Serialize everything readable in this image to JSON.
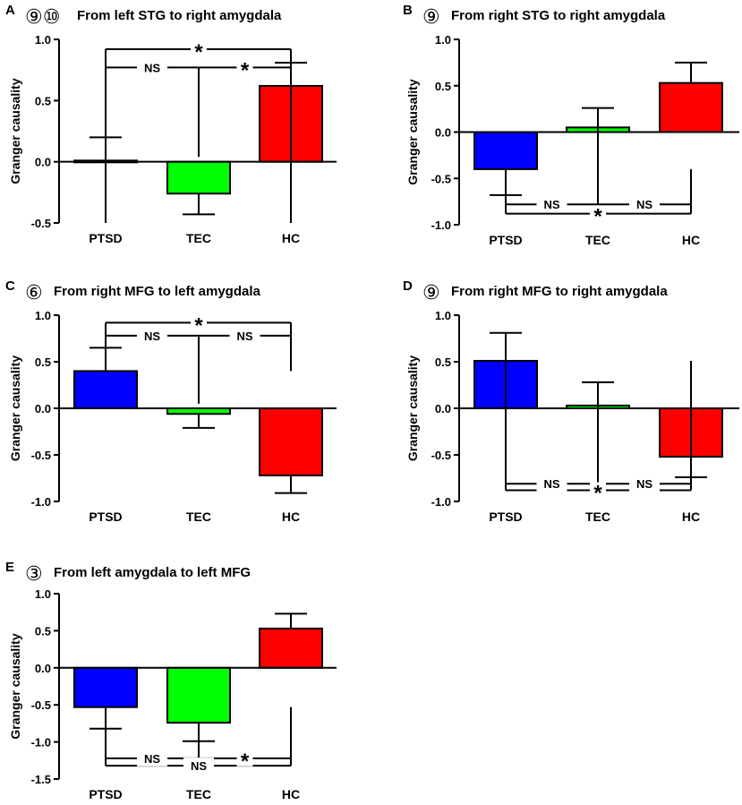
{
  "figure": {
    "description_free": true
  },
  "chart_data": [
    {
      "type": "bar",
      "panel": "A",
      "circled_markers": [
        "⑨",
        "⑩"
      ],
      "title": "From left STG to right amygdala",
      "ylabel": "Granger causality",
      "categories": [
        "PTSD",
        "TEC",
        "HC"
      ],
      "values": [
        0.01,
        -0.26,
        0.62
      ],
      "errors": [
        0.19,
        0.17,
        0.19
      ],
      "colors": [
        "#0000ff",
        "#00ff00",
        "#ff0000"
      ],
      "ylim": [
        -0.5,
        1.0
      ],
      "yticks": [
        -0.5,
        0.0,
        0.5,
        1.0
      ],
      "ytick_labels": [
        "-0.5",
        "0.0",
        "0.5",
        "1.0"
      ],
      "brackets": [
        {
          "from": 0,
          "to": 2,
          "label": "*",
          "level": 0.92,
          "drop": -0.5
        },
        {
          "from": 1,
          "to": 2,
          "label": "*",
          "level": 0.77,
          "drop": 0.04,
          "left_label": "NS"
        }
      ]
    },
    {
      "type": "bar",
      "panel": "B",
      "circled_markers": [
        "⑨"
      ],
      "title": "From right STG to right amygdala",
      "ylabel": "Granger causality",
      "categories": [
        "PTSD",
        "TEC",
        "HC"
      ],
      "values": [
        -0.4,
        0.05,
        0.53
      ],
      "errors": [
        0.28,
        0.21,
        0.22
      ],
      "colors": [
        "#0000ff",
        "#00ff00",
        "#ff0000"
      ],
      "ylim": [
        -1.0,
        1.0
      ],
      "yticks": [
        -1.0,
        -0.5,
        0.0,
        0.5,
        1.0
      ],
      "ytick_labels": [
        "-1.0",
        "-0.5",
        "0.0",
        "0.5",
        "1.0"
      ],
      "brackets": [
        {
          "from": 0,
          "to": 2,
          "label": "*",
          "level": -0.88,
          "drop": -0.4
        },
        {
          "from": 1,
          "to": 2,
          "label": "NS",
          "level": -0.78,
          "drop": 0.05,
          "left_label": "NS"
        }
      ]
    },
    {
      "type": "bar",
      "panel": "C",
      "circled_markers": [
        "⑥"
      ],
      "title": "From right MFG to left amygdala",
      "ylabel": "Granger causality",
      "categories": [
        "PTSD",
        "TEC",
        "HC"
      ],
      "values": [
        0.4,
        -0.06,
        -0.72
      ],
      "errors": [
        0.25,
        0.15,
        0.19
      ],
      "colors": [
        "#0000ff",
        "#00ff00",
        "#ff0000"
      ],
      "ylim": [
        -1.0,
        1.0
      ],
      "yticks": [
        -1.0,
        -0.5,
        0.0,
        0.5,
        1.0
      ],
      "ytick_labels": [
        "-1.0",
        "-0.5",
        "0.0",
        "0.5",
        "1.0"
      ],
      "brackets": [
        {
          "from": 0,
          "to": 2,
          "label": "*",
          "level": 0.92,
          "drop": 0.4
        },
        {
          "from": 1,
          "to": 2,
          "label": "NS",
          "level": 0.78,
          "drop": 0.05,
          "left_label": "NS"
        }
      ]
    },
    {
      "type": "bar",
      "panel": "D",
      "circled_markers": [
        "⑨"
      ],
      "title": "From right MFG to right amygdala",
      "ylabel": "Granger causality",
      "categories": [
        "PTSD",
        "TEC",
        "HC"
      ],
      "values": [
        0.51,
        0.03,
        -0.52
      ],
      "errors": [
        0.3,
        0.25,
        0.22
      ],
      "colors": [
        "#0000ff",
        "#00ff00",
        "#ff0000"
      ],
      "ylim": [
        -1.0,
        1.0
      ],
      "yticks": [
        -1.0,
        -0.5,
        0.0,
        0.5,
        1.0
      ],
      "ytick_labels": [
        "-1.0",
        "-0.5",
        "0.0",
        "0.5",
        "1.0"
      ],
      "brackets": [
        {
          "from": 0,
          "to": 2,
          "label": "*",
          "level": -0.88,
          "drop": 0.51
        },
        {
          "from": 1,
          "to": 2,
          "label": "NS",
          "level": -0.81,
          "drop": 0.03,
          "left_label": "NS"
        }
      ]
    },
    {
      "type": "bar",
      "panel": "E",
      "circled_markers": [
        "③"
      ],
      "title": "From left amygdala to left MFG",
      "ylabel": "Granger causality",
      "categories": [
        "PTSD",
        "TEC",
        "HC"
      ],
      "values": [
        -0.53,
        -0.74,
        0.53
      ],
      "errors": [
        0.29,
        0.25,
        0.2
      ],
      "colors": [
        "#0000ff",
        "#00ff00",
        "#ff0000"
      ],
      "ylim": [
        -1.5,
        1.0
      ],
      "yticks": [
        -1.5,
        -1.0,
        -0.5,
        0.0,
        0.5,
        1.0
      ],
      "ytick_labels": [
        "-1.5",
        "-1.0",
        "-0.5",
        "0.0",
        "0.5",
        "1.0"
      ],
      "brackets": [
        {
          "from": 0,
          "to": 2,
          "label": "NS",
          "level": -1.32,
          "drop": -0.53
        },
        {
          "from": 1,
          "to": 2,
          "label": "*",
          "level": -1.22,
          "drop": -0.74,
          "left_label": "NS"
        }
      ]
    }
  ]
}
